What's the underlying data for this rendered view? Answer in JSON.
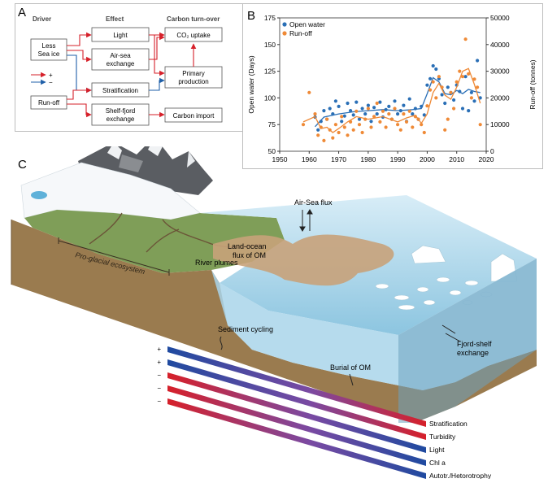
{
  "panelA": {
    "letter": "A",
    "headers": {
      "driver": "Driver",
      "effect": "Effect",
      "turnover": "Carbon turn-over"
    },
    "boxes": {
      "less_sea_ice": [
        "Less",
        "Sea ice"
      ],
      "runoff": "Run-off",
      "light": "Light",
      "air_sea": [
        "Air-sea",
        "exchange"
      ],
      "stratification": "Stratification",
      "shelf_fjord": [
        "Shelf-fjord",
        "exchange"
      ],
      "co2_uptake": "CO₂ uptake",
      "primary_production": [
        "Primary",
        "production"
      ],
      "carbon_import": "Carbon import"
    },
    "legend": {
      "plus": "+",
      "minus": "−"
    },
    "colors": {
      "positive": "#d6202a",
      "negative": "#1f5fa8"
    }
  },
  "panelB": {
    "letter": "B",
    "chart_data": {
      "type": "line",
      "x_range": [
        1950,
        2020
      ],
      "x_ticks": [
        "1950",
        "1960",
        "1970",
        "1980",
        "1990",
        "2000",
        "2010",
        "2020"
      ],
      "ylabel_left": "Open water (Days)",
      "ylim_left": [
        50,
        175
      ],
      "y_ticks_left": [
        "50",
        "75",
        "100",
        "125",
        "150",
        "175"
      ],
      "ylabel_right": "Run-off (tonnes)",
      "ylim_right": [
        0,
        50000
      ],
      "y_ticks_right": [
        "0",
        "10000",
        "20000",
        "30000",
        "40000",
        "50000"
      ],
      "legend_position": "top-left",
      "series": [
        {
          "name": "Open water",
          "color": "#2a6fb6",
          "axis": "left",
          "x": [
            1962,
            1963,
            1964,
            1965,
            1966,
            1967,
            1968,
            1969,
            1970,
            1971,
            1972,
            1973,
            1974,
            1975,
            1976,
            1977,
            1978,
            1979,
            1980,
            1981,
            1982,
            1983,
            1984,
            1985,
            1986,
            1987,
            1988,
            1989,
            1990,
            1991,
            1992,
            1993,
            1994,
            1995,
            1996,
            1997,
            1998,
            1999,
            2000,
            2001,
            2002,
            2003,
            2004,
            2005,
            2006,
            2007,
            2008,
            2009,
            2010,
            2011,
            2012,
            2013,
            2014,
            2015,
            2016,
            2017,
            2018
          ],
          "values": [
            82,
            70,
            78,
            88,
            80,
            90,
            85,
            97,
            92,
            78,
            83,
            95,
            88,
            84,
            96,
            80,
            90,
            85,
            93,
            78,
            91,
            85,
            96,
            82,
            89,
            92,
            80,
            97,
            85,
            88,
            93,
            78,
            99,
            85,
            90,
            80,
            92,
            84,
            112,
            118,
            130,
            127,
            118,
            103,
            95,
            110,
            105,
            98,
            112,
            106,
            90,
            120,
            88,
            105,
            97,
            135,
            100
          ],
          "trend": [
            [
              1962,
              73
            ],
            [
              1965,
              82
            ],
            [
              1970,
              85
            ],
            [
              1975,
              87
            ],
            [
              1980,
              88
            ],
            [
              1985,
              89
            ],
            [
              1990,
              88
            ],
            [
              1995,
              89
            ],
            [
              1998,
              90
            ],
            [
              2000,
              104
            ],
            [
              2002,
              119
            ],
            [
              2004,
              115
            ],
            [
              2006,
              104
            ],
            [
              2008,
              103
            ],
            [
              2010,
              107
            ],
            [
              2012,
              104
            ],
            [
              2014,
              108
            ],
            [
              2016,
              106
            ],
            [
              2018,
              105
            ]
          ]
        },
        {
          "name": "Run-off",
          "color": "#ef8a37",
          "axis": "right",
          "x": [
            1958,
            1960,
            1962,
            1963,
            1964,
            1965,
            1966,
            1967,
            1968,
            1969,
            1970,
            1971,
            1972,
            1973,
            1974,
            1975,
            1976,
            1977,
            1978,
            1979,
            1980,
            1981,
            1982,
            1983,
            1984,
            1985,
            1986,
            1987,
            1988,
            1989,
            1990,
            1991,
            1992,
            1993,
            1994,
            1995,
            1996,
            1997,
            1998,
            1999,
            2000,
            2001,
            2002,
            2003,
            2004,
            2005,
            2006,
            2007,
            2008,
            2009,
            2010,
            2011,
            2012,
            2013,
            2014,
            2015,
            2016,
            2017,
            2018
          ],
          "values": [
            10000,
            22000,
            14000,
            6000,
            9000,
            4000,
            12000,
            8000,
            5000,
            10000,
            7000,
            13000,
            9000,
            6000,
            11000,
            8000,
            15000,
            10000,
            7000,
            12000,
            16000,
            9000,
            13000,
            18000,
            11000,
            15000,
            9000,
            14000,
            12000,
            16000,
            10000,
            8000,
            14000,
            11000,
            15000,
            9000,
            13000,
            12000,
            10000,
            7000,
            17000,
            23000,
            26000,
            20000,
            28000,
            24000,
            8000,
            12000,
            22000,
            16000,
            26000,
            30000,
            28000,
            42000,
            29000,
            20000,
            27000,
            24000,
            10000
          ],
          "trend": [
            [
              1958,
              11000
            ],
            [
              1962,
              13000
            ],
            [
              1964,
              8500
            ],
            [
              1966,
              9000
            ],
            [
              1968,
              7000
            ],
            [
              1970,
              8500
            ],
            [
              1973,
              11000
            ],
            [
              1976,
              13000
            ],
            [
              1980,
              12000
            ],
            [
              1985,
              13000
            ],
            [
              1990,
              11000
            ],
            [
              1993,
              12500
            ],
            [
              1996,
              13500
            ],
            [
              1998,
              10500
            ],
            [
              2000,
              14000
            ],
            [
              2002,
              22000
            ],
            [
              2004,
              25500
            ],
            [
              2006,
              21000
            ],
            [
              2008,
              19500
            ],
            [
              2010,
              24000
            ],
            [
              2012,
              30000
            ],
            [
              2014,
              31000
            ],
            [
              2016,
              25000
            ],
            [
              2018,
              18000
            ]
          ]
        }
      ]
    }
  },
  "panelC": {
    "letter": "C",
    "labels": {
      "air_sea_flux": "Air-Sea flux",
      "land_ocean": [
        "Land-ocean",
        "flux of OM"
      ],
      "river_plumes": "River plumes",
      "pro_glacial": "Pro-glacial ecosystem",
      "sediment_cycling": "Sediment cycling",
      "burial_om": "Burial of OM",
      "fjord_shelf": [
        "Fjord-shelf",
        "exchange"
      ]
    },
    "gradients": [
      {
        "sign": "+",
        "label": "Stratification"
      },
      {
        "sign": "+",
        "label": "Turbidity"
      },
      {
        "sign": "−",
        "label": "Light"
      },
      {
        "sign": "−",
        "label": "Chl a"
      },
      {
        "sign": "−",
        "label": "Autotr./Hetorotrophy"
      }
    ]
  }
}
